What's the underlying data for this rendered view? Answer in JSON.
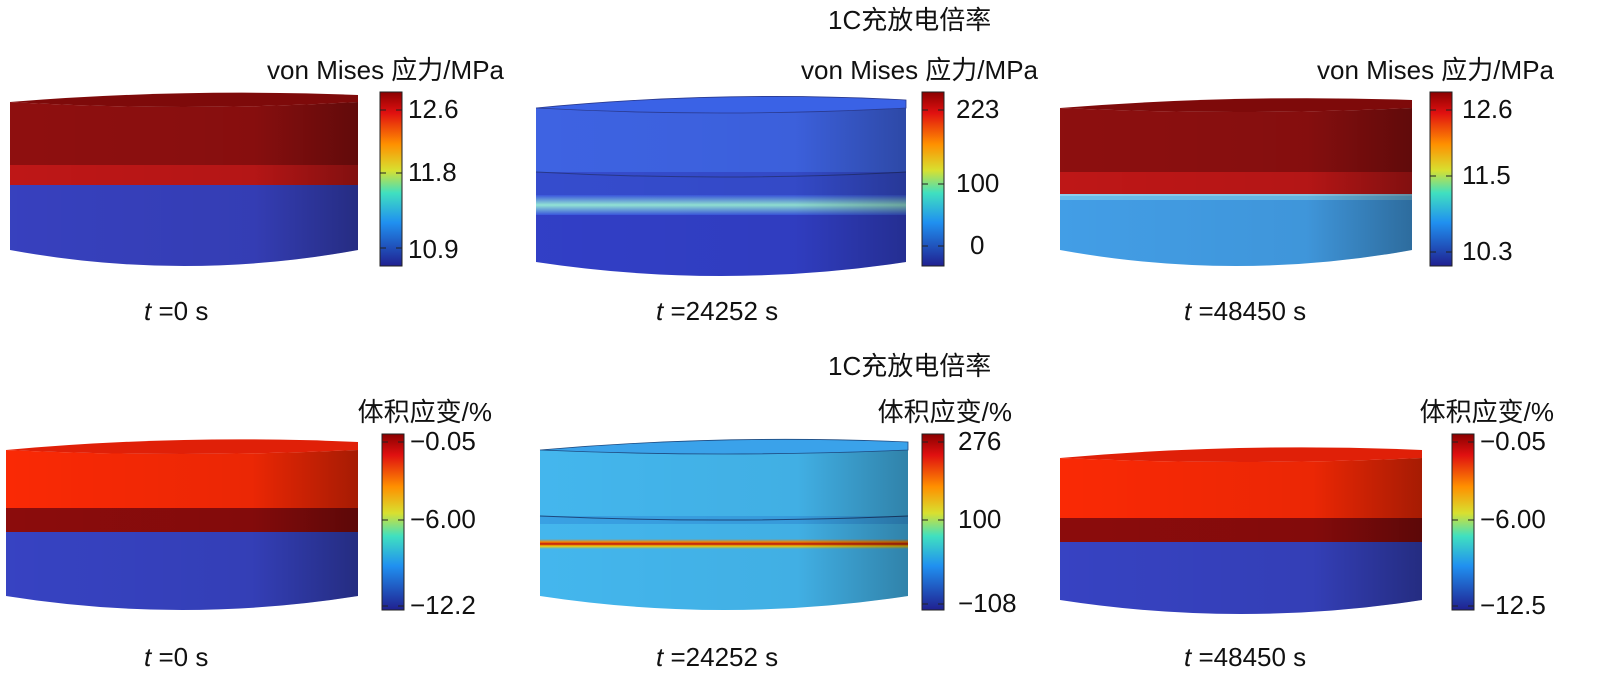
{
  "figure": {
    "rows": [
      {
        "title": "1C充放电倍率",
        "panels": [
          {
            "colorbar_title": "von Mises 应力/MPa",
            "ticks": [
              "12.6",
              "11.8",
              "10.9"
            ],
            "time_var": "t",
            "time_value": "=0 s"
          },
          {
            "colorbar_title": "von Mises 应力/MPa",
            "ticks": [
              "223",
              "100",
              "0"
            ],
            "time_var": "t",
            "time_value": "=24252 s"
          },
          {
            "colorbar_title": "von Mises 应力/MPa",
            "ticks": [
              "12.6",
              "11.5",
              "10.3"
            ],
            "time_var": "t",
            "time_value": "=48450 s"
          }
        ]
      },
      {
        "title": "1C充放电倍率",
        "panels": [
          {
            "colorbar_title": "体积应变/%",
            "ticks": [
              "−0.05",
              "−6.00",
              "−12.2"
            ],
            "time_var": "t",
            "time_value": "=0 s"
          },
          {
            "colorbar_title": "体积应变/%",
            "ticks": [
              "276",
              "100",
              "−108"
            ],
            "time_var": "t",
            "time_value": "=24252 s"
          },
          {
            "colorbar_title": "体积应变/%",
            "ticks": [
              "−0.05",
              "−6.00",
              "−12.5"
            ],
            "time_var": "t",
            "time_value": "=48450 s"
          }
        ]
      }
    ],
    "colors": {
      "dark_red": "#8e0a0a",
      "red": "#c41414",
      "bright_red": "#ff2a05",
      "blue": "#3440c8",
      "cyan": "#45b8f0",
      "light_blue": "#3c9ef0",
      "mid_blue": "#3d6ef0"
    }
  }
}
